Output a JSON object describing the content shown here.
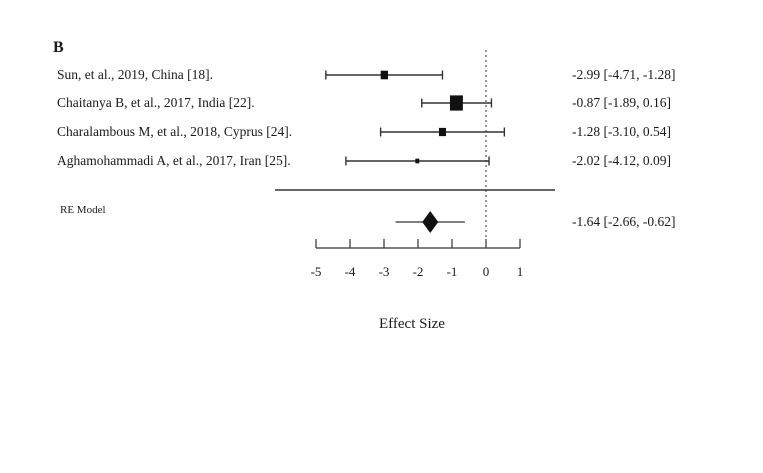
{
  "panel_label": "B",
  "chart_data": {
    "type": "forest",
    "title": "",
    "xlabel": "Effect Size",
    "xlim": [
      -5,
      1
    ],
    "xticks": [
      -5,
      -4,
      -3,
      -2,
      -1,
      0,
      1
    ],
    "reference_line": 0,
    "studies": [
      {
        "label": "Sun, et al., 2019, China [18].",
        "estimate": -2.99,
        "lower": -4.71,
        "upper": -1.28,
        "ci_text": "-2.99 [-4.71, -1.28]",
        "weight": 0.45
      },
      {
        "label": "Chaitanya B, et al., 2017, India [22].",
        "estimate": -0.87,
        "lower": -1.89,
        "upper": 0.16,
        "ci_text": "-0.87 [-1.89, 0.16]",
        "weight": 1.0
      },
      {
        "label": "Charalambous M,  et al., 2018, Cyprus [24].",
        "estimate": -1.28,
        "lower": -3.1,
        "upper": 0.54,
        "ci_text": "-1.28 [-3.10, 0.54]",
        "weight": 0.42
      },
      {
        "label": "Aghamohammadi A,  et al., 2017, Iran [25].",
        "estimate": -2.02,
        "lower": -4.12,
        "upper": 0.09,
        "ci_text": "-2.02 [-4.12, 0.09]",
        "weight": 0.12
      }
    ],
    "summary": {
      "label": "RE Model",
      "estimate": -1.64,
      "lower": -2.66,
      "upper": -0.62,
      "ci_text": "-1.64 [-2.66, -0.62]"
    }
  }
}
